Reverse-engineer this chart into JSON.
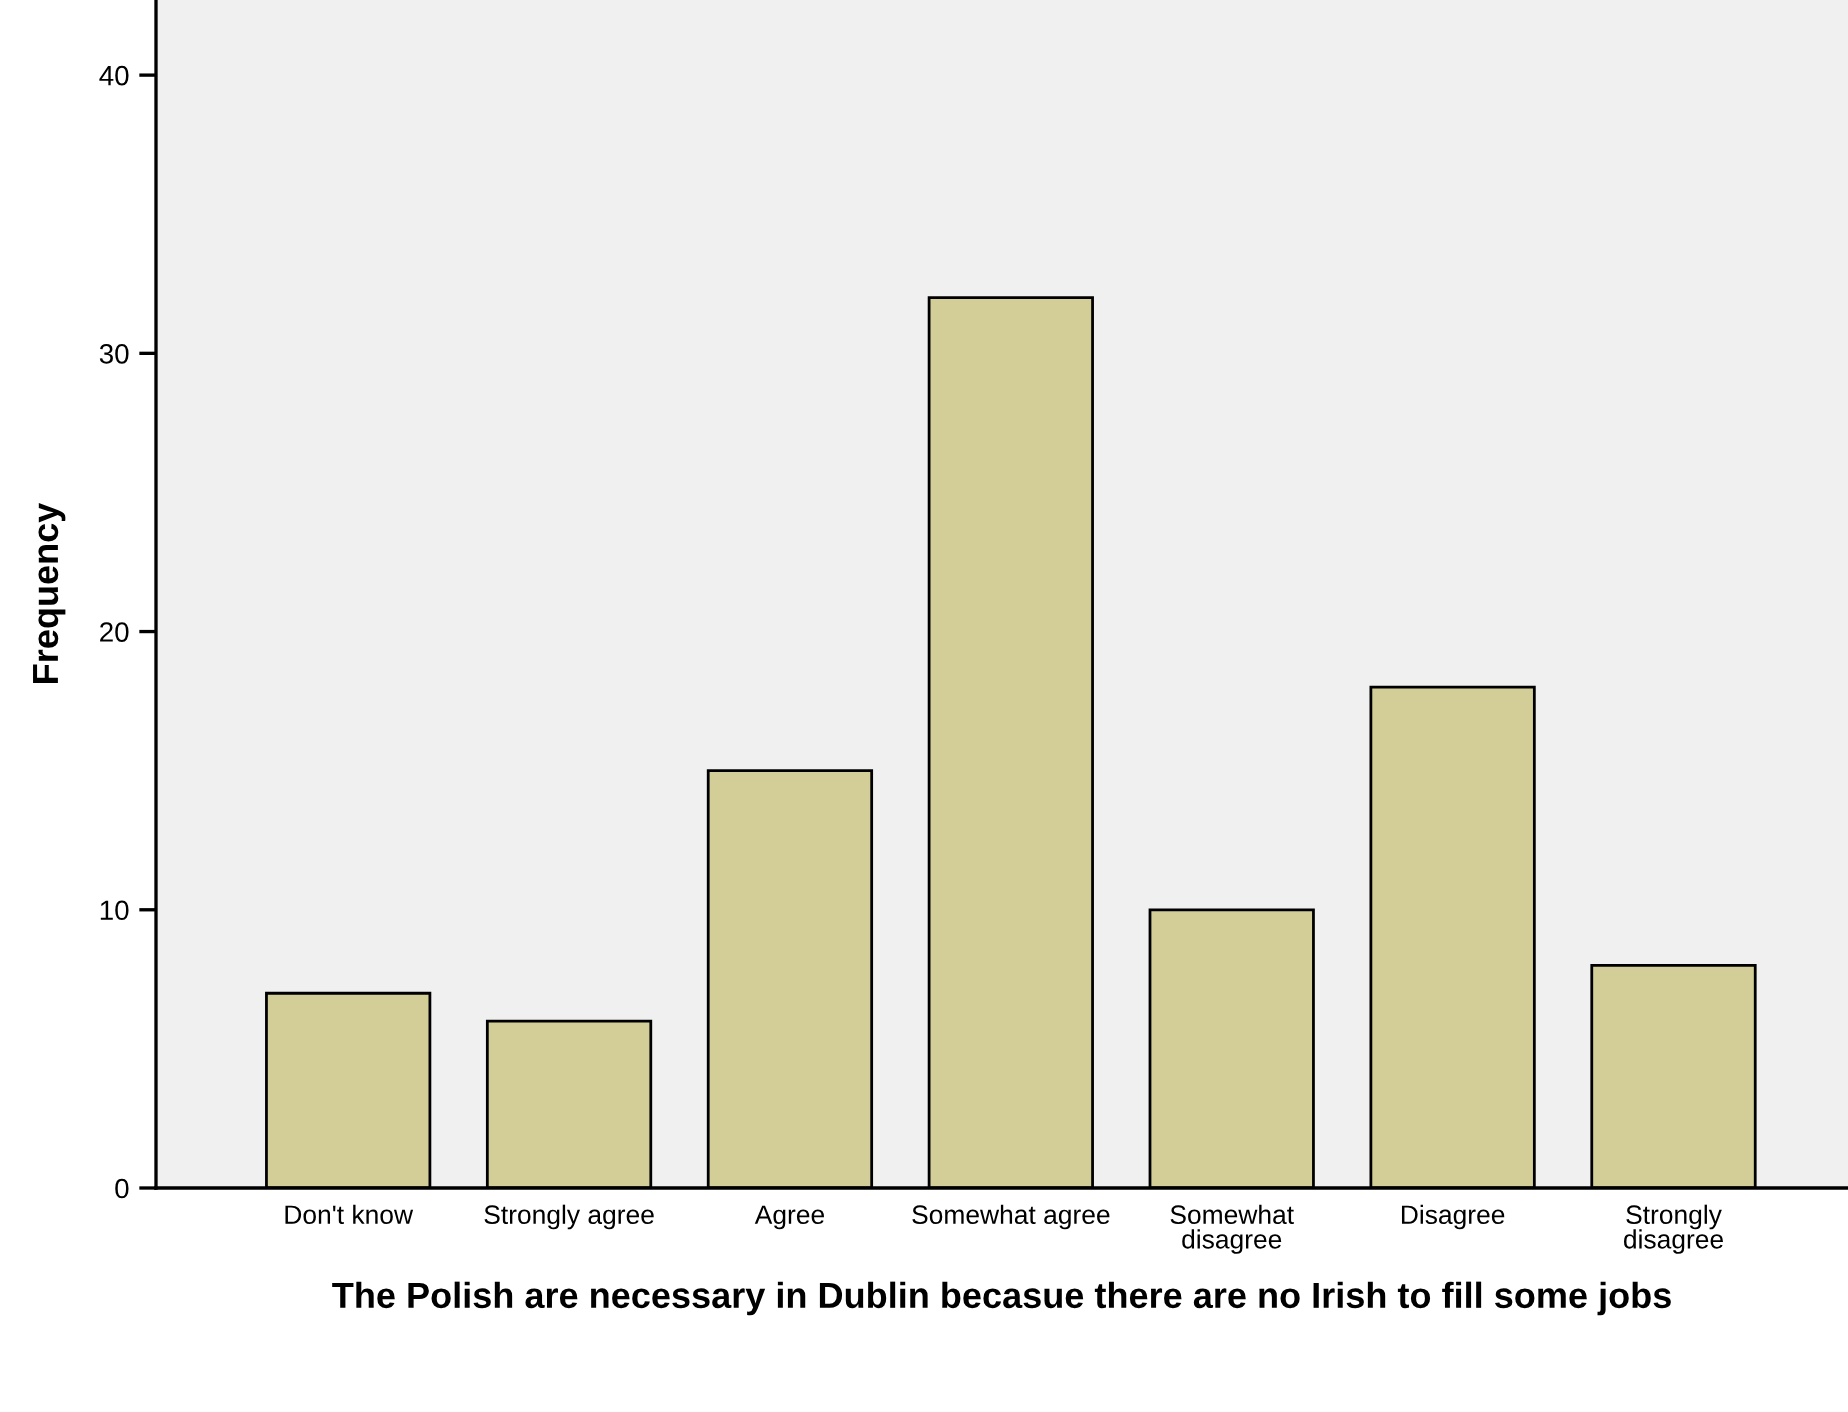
{
  "chart_data": {
    "type": "bar",
    "categories": [
      "Don't know",
      "Strongly agree",
      "Agree",
      "Somewhat agree",
      "Somewhat disagree",
      "Disagree",
      "Strongly disagree"
    ],
    "values": [
      7,
      6,
      15,
      32,
      10,
      18,
      8
    ],
    "color": "#d3ce97",
    "xlabel": "The Polish are necessary in Dublin becasue there are no Irish to fill some jobs",
    "ylabel": "Frequency",
    "ylim": [
      0,
      42.7
    ],
    "yticks": [
      0,
      10,
      20,
      30,
      40
    ],
    "grid": false,
    "legend": false
  }
}
